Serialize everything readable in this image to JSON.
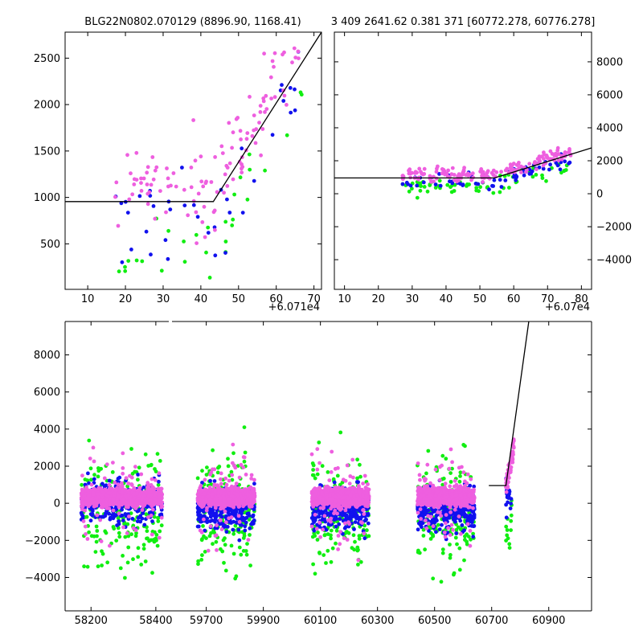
{
  "colors": {
    "magenta": "#ee5fdf",
    "blue": "#1111ee",
    "green": "#11ee11",
    "line": "#000000"
  },
  "chart_data": [
    {
      "id": "top-left",
      "type": "scatter",
      "title": "BLG22N0802.070129 (8896.90, 1168.41)",
      "x_offset_label": "+6.071e4",
      "xlim": [
        4,
        72
      ],
      "ylim": [
        10,
        2780
      ],
      "xticks": [
        10,
        20,
        30,
        40,
        50,
        60,
        70
      ],
      "yticks": [
        500,
        1000,
        1500,
        2000,
        2500
      ],
      "yaxis_side": "left",
      "model_line": [
        [
          4,
          955
        ],
        [
          43.3,
          955
        ],
        [
          72,
          2780
        ]
      ],
      "scatter_params": {
        "xrange": [
          17,
          67
        ],
        "base": 955,
        "slope": 63.6,
        "knee": 43.3,
        "spread": 550
      }
    },
    {
      "id": "top-right",
      "type": "scatter",
      "title": "3 409 2641.62 0.381 371 [60772.278, 60776.278]",
      "x_offset_label": "+6.07e4",
      "xlim": [
        7,
        83
      ],
      "ylim": [
        -5800,
        9800
      ],
      "xticks": [
        10,
        20,
        30,
        40,
        50,
        60,
        70,
        80
      ],
      "yticks": [
        -4000,
        -2000,
        0,
        2000,
        4000,
        6000,
        8000
      ],
      "yaxis_side": "right",
      "model_line": [
        [
          7,
          955
        ],
        [
          54.3,
          955
        ],
        [
          83,
          2780
        ]
      ],
      "scatter_params": {
        "xrange": [
          27,
          77
        ],
        "base": 900,
        "slope": 63.6,
        "knee": 54.3,
        "spread": 500
      }
    },
    {
      "id": "bottom",
      "type": "scatter",
      "title": "",
      "ylim": [
        -5800,
        9800
      ],
      "yticks": [
        -4000,
        -2000,
        0,
        2000,
        4000,
        6000,
        8000
      ],
      "segments": [
        {
          "xlim": [
            58120,
            58440
          ],
          "xticks": [
            58200,
            58400
          ]
        },
        {
          "xlim": [
            59580,
            61050
          ],
          "xticks": [
            59700,
            59900,
            60100,
            60300,
            60500,
            60700,
            60900
          ]
        }
      ],
      "seasons": [
        [
          58170,
          58420
        ],
        [
          59670,
          59870
        ],
        [
          60070,
          60270
        ],
        [
          60440,
          60640
        ]
      ],
      "event_cluster": [
        60750,
        60778
      ],
      "model_line": [
        [
          60690,
          955
        ],
        [
          60750,
          955
        ],
        [
          60830,
          9800
        ]
      ]
    }
  ]
}
